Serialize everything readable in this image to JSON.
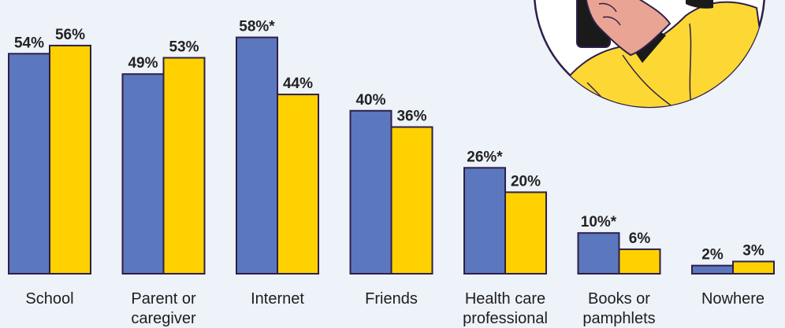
{
  "chart_data": {
    "type": "bar",
    "categories": [
      [
        "School"
      ],
      [
        "Parent or",
        "caregiver"
      ],
      [
        "Internet"
      ],
      [
        "Friends"
      ],
      [
        "Health care",
        "professional"
      ],
      [
        "Books or",
        "pamphlets"
      ],
      [
        "Nowhere"
      ]
    ],
    "series": [
      {
        "values": [
          54,
          49,
          58,
          40,
          26,
          10,
          2
        ],
        "labels": [
          "54%",
          "49%",
          "58%*",
          "40%",
          "26%*",
          "10%*",
          "2%"
        ],
        "color": "#5b77bd"
      },
      {
        "values": [
          56,
          53,
          44,
          36,
          20,
          6,
          3
        ],
        "labels": [
          "56%",
          "53%",
          "44%",
          "36%",
          "20%",
          "6%",
          "3%"
        ],
        "color": "#ffd100"
      }
    ],
    "ylim": [
      0,
      100
    ],
    "grid": false,
    "legend": "none"
  },
  "colors": {
    "background": "#eef2f9",
    "bar_outline": "#2f1f4a",
    "illustration_skin": "#e9a494",
    "illustration_shirt": "#fdd835"
  }
}
